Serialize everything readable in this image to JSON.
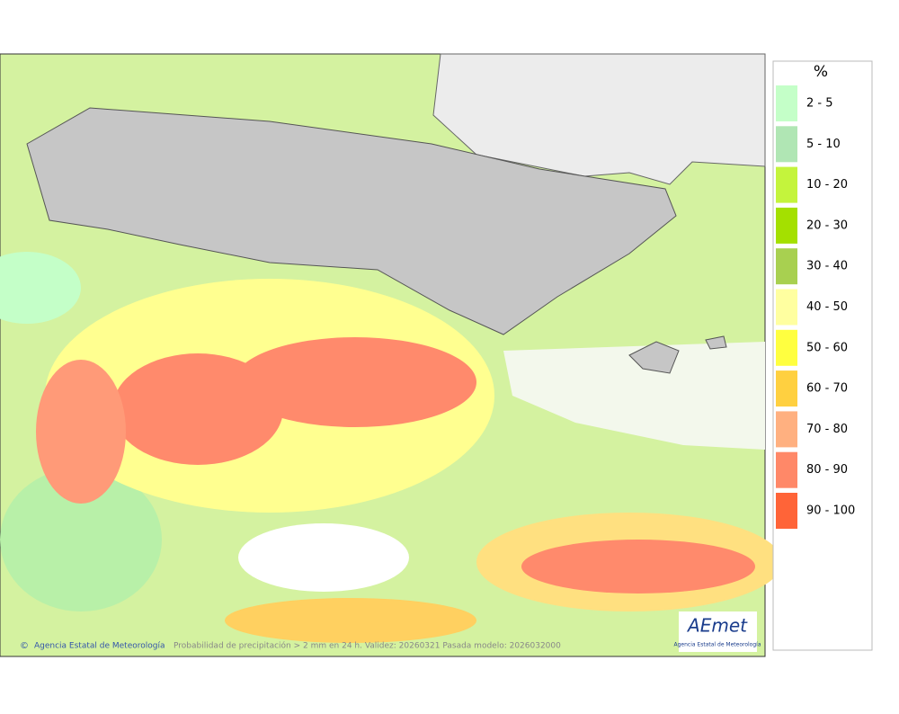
{
  "map": {
    "footer": {
      "credit": "Agencia Estatal de Meteorología",
      "caption": "Probabilidad de precipitación > 2 mm en 24 h. Validez: 20260321 Pasada modelo: 2026032000"
    },
    "logo": {
      "name": "AEmet",
      "subtitle": "Agencia Estatal de Meteorología"
    }
  },
  "legend": {
    "unit": "%",
    "items": [
      {
        "label": "2 - 5",
        "color": "#c4ffc8"
      },
      {
        "label": "5 - 10",
        "color": "#b0e6b4"
      },
      {
        "label": "10 - 20",
        "color": "#c4f43c"
      },
      {
        "label": "20 - 30",
        "color": "#a4e000"
      },
      {
        "label": "30 - 40",
        "color": "#a8d050"
      },
      {
        "label": "40 - 50",
        "color": "#ffffa0"
      },
      {
        "label": "50 - 60",
        "color": "#ffff40"
      },
      {
        "label": "60 - 70",
        "color": "#ffd040"
      },
      {
        "label": "70 - 80",
        "color": "#ffb080"
      },
      {
        "label": "80 - 90",
        "color": "#ff8868"
      },
      {
        "label": "90 - 100",
        "color": "#ff6438"
      }
    ]
  }
}
